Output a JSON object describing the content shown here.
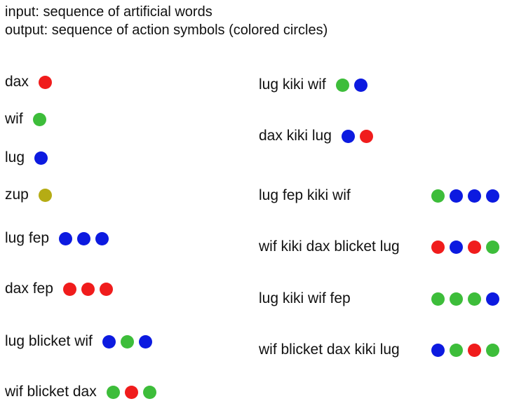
{
  "header": {
    "line1": "input: sequence of artificial words",
    "line2": "output: sequence of action symbols (colored circles)"
  },
  "colors": {
    "red": "#f01c1c",
    "green": "#3dbd3a",
    "blue": "#0c1ae0",
    "olive": "#b5ac14"
  },
  "left_examples": [
    {
      "words": "dax",
      "symbols": [
        "red"
      ]
    },
    {
      "words": "wif",
      "symbols": [
        "green"
      ]
    },
    {
      "words": "lug",
      "symbols": [
        "blue"
      ]
    },
    {
      "words": "zup",
      "symbols": [
        "olive"
      ]
    },
    {
      "words": "lug fep",
      "symbols": [
        "blue",
        "blue",
        "blue"
      ]
    },
    {
      "words": "dax fep",
      "symbols": [
        "red",
        "red",
        "red"
      ]
    },
    {
      "words": "lug blicket wif",
      "symbols": [
        "blue",
        "green",
        "blue"
      ]
    },
    {
      "words": "wif blicket dax",
      "symbols": [
        "green",
        "red",
        "green"
      ]
    }
  ],
  "right_examples": [
    {
      "words": "lug kiki wif",
      "symbols": [
        "green",
        "blue"
      ]
    },
    {
      "words": "dax kiki lug",
      "symbols": [
        "blue",
        "red"
      ]
    },
    {
      "words": "lug fep kiki wif",
      "symbols": [
        "green",
        "blue",
        "blue",
        "blue"
      ]
    },
    {
      "words": "wif kiki dax blicket lug",
      "symbols": [
        "red",
        "blue",
        "red",
        "green"
      ]
    },
    {
      "words": "lug kiki wif fep",
      "symbols": [
        "green",
        "green",
        "green",
        "blue"
      ]
    },
    {
      "words": "wif blicket dax kiki lug",
      "symbols": [
        "blue",
        "green",
        "red",
        "green"
      ]
    }
  ]
}
